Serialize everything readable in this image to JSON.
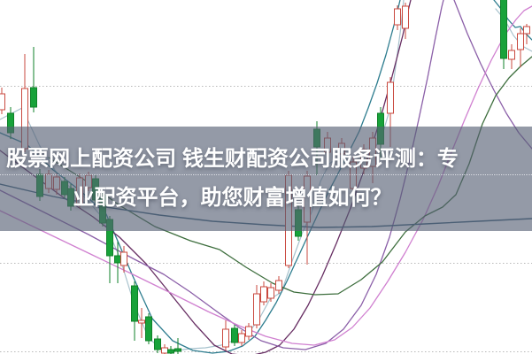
{
  "banner": {
    "line1": "股票网上配资公司 钱生财配资公司服务评测：专",
    "line2": "业配资平台，助您财富增值如何？",
    "full_title": "股票网上配资公司 钱生财配资公司服务评测：专业配资平台，助您财富增值如何？",
    "text_color": "#ffffff",
    "background": "rgba(85,95,115,0.63)"
  },
  "chart_data": {
    "type": "candlestick",
    "title": "",
    "xlabel": "",
    "ylabel": "",
    "axes_labels_visible": false,
    "units": "pixel coordinates of 601x400 canvas (no axis tick labels are visible in source)",
    "grid": {
      "style": "dotted",
      "color": "#b9b9b9",
      "y_positions": [
        97.5,
        197.5,
        297.5,
        397.5
      ]
    },
    "colors": {
      "up_candle_stroke": "#c9493f",
      "up_candle_fill": "#ffffff",
      "down_candle_fill": "#18a23a",
      "down_candle_stroke": "#0f8128",
      "ma5_white": "#a7c2cd",
      "ma10_teal": "#2e7d8f",
      "ma20_purple": "#662d62",
      "ma60_violet": "#8b5fa8",
      "ma120_pink": "#d080d0",
      "ma_green": "#3d6e3d",
      "ma_slate": "#3a5f78"
    },
    "candles": [
      [
        2,
        106,
        124,
        99,
        129,
        "up"
      ],
      [
        12,
        128,
        150,
        121,
        157,
        "down"
      ],
      [
        28,
        100,
        168,
        61,
        172,
        "up"
      ],
      [
        38,
        99,
        121,
        53,
        127,
        "down"
      ],
      [
        45,
        197,
        222,
        191,
        227,
        "down"
      ],
      [
        55,
        197,
        213,
        192,
        218,
        "up"
      ],
      [
        64,
        200,
        214,
        196,
        220,
        "up"
      ],
      [
        73,
        205,
        220,
        200,
        224,
        "down"
      ],
      [
        80,
        213,
        233,
        208,
        238,
        "down"
      ],
      [
        90,
        201,
        230,
        196,
        235,
        "up"
      ],
      [
        100,
        198,
        212,
        194,
        216,
        "up"
      ],
      [
        108,
        202,
        226,
        198,
        230,
        "down"
      ],
      [
        116,
        222,
        252,
        218,
        256,
        "down"
      ],
      [
        124,
        248,
        289,
        244,
        320,
        "down"
      ],
      [
        133,
        289,
        297,
        273,
        320,
        "down"
      ],
      [
        140,
        285,
        300,
        278,
        308,
        "up"
      ],
      [
        152,
        323,
        363,
        318,
        385,
        "down"
      ],
      [
        160,
        362,
        365,
        348,
        382,
        "up"
      ],
      [
        168,
        358,
        385,
        354,
        389,
        "down"
      ],
      [
        178,
        383,
        395,
        379,
        399,
        "down"
      ],
      [
        186,
        393,
        399,
        389,
        400,
        "up"
      ],
      [
        193,
        395,
        399,
        391,
        400,
        "down"
      ],
      [
        201,
        394,
        397,
        382,
        400,
        "down"
      ],
      [
        255,
        372,
        392,
        362,
        396,
        "up"
      ],
      [
        265,
        371,
        387,
        367,
        391,
        "down"
      ],
      [
        273,
        377,
        387,
        373,
        391,
        "up"
      ],
      [
        281,
        369,
        380,
        365,
        384,
        "up"
      ],
      [
        290,
        332,
        367,
        322,
        371,
        "up"
      ],
      [
        298,
        324,
        341,
        318,
        345,
        "up"
      ],
      [
        306,
        325,
        337,
        320,
        341,
        "up"
      ],
      [
        315,
        317,
        328,
        312,
        332,
        "up"
      ],
      [
        326,
        198,
        300,
        193,
        303,
        "up"
      ],
      [
        337,
        237,
        267,
        231,
        272,
        "down"
      ],
      [
        347,
        199,
        251,
        193,
        299,
        "up"
      ],
      [
        358,
        146,
        166,
        137,
        198,
        "down"
      ],
      [
        370,
        156,
        172,
        149,
        184,
        "up"
      ],
      [
        386,
        162,
        174,
        156,
        181,
        "up"
      ],
      [
        399,
        183,
        213,
        177,
        219,
        "up"
      ],
      [
        411,
        169,
        190,
        163,
        197,
        "up"
      ],
      [
        421,
        156,
        188,
        149,
        207,
        "up"
      ],
      [
        430,
        128,
        163,
        121,
        180,
        "down"
      ],
      [
        441,
        93,
        128,
        87,
        166,
        "up"
      ],
      [
        449,
        10,
        28,
        6,
        34,
        "up"
      ],
      [
        458,
        7,
        32,
        3,
        44,
        "up"
      ],
      [
        569,
        -6,
        66,
        -6,
        78,
        "down"
      ],
      [
        578,
        57,
        67,
        50,
        78,
        "up"
      ],
      [
        588,
        38,
        56,
        32,
        76,
        "up"
      ],
      [
        595,
        30,
        38,
        27,
        50,
        "up"
      ]
    ],
    "candle_body_width": 7,
    "ma_lines": [
      {
        "name": "ma5-white",
        "color": "#a7c2cd",
        "width": 1.2,
        "points": [
          [
            0,
            135
          ],
          [
            25,
            122
          ],
          [
            45,
            165
          ],
          [
            70,
            205
          ],
          [
            95,
            222
          ],
          [
            115,
            245
          ],
          [
            135,
            290
          ],
          [
            152,
            345
          ],
          [
            168,
            382
          ],
          [
            185,
            397
          ],
          [
            200,
            396
          ],
          [
            215,
            394
          ],
          [
            232,
            393
          ],
          [
            250,
            390
          ],
          [
            266,
            384
          ],
          [
            280,
            377
          ],
          [
            293,
            360
          ],
          [
            305,
            338
          ],
          [
            318,
            330
          ],
          [
            330,
            295
          ],
          [
            342,
            262
          ],
          [
            352,
            240
          ],
          [
            362,
            205
          ],
          [
            372,
            185
          ],
          [
            382,
            178
          ],
          [
            392,
            183
          ],
          [
            402,
            190
          ],
          [
            412,
            180
          ],
          [
            422,
            170
          ],
          [
            432,
            152
          ],
          [
            440,
            125
          ],
          [
            447,
            75
          ],
          [
            453,
            30
          ],
          [
            456,
            0
          ]
        ]
      },
      {
        "name": "ma5-white-right",
        "color": "#a7c2cd",
        "width": 1.2,
        "points": [
          [
            560,
            10
          ],
          [
            570,
            22
          ],
          [
            580,
            40
          ],
          [
            590,
            52
          ],
          [
            601,
            58
          ]
        ]
      },
      {
        "name": "ma10-teal",
        "color": "#2e7d8f",
        "width": 1.3,
        "points": [
          [
            0,
            150
          ],
          [
            30,
            163
          ],
          [
            60,
            192
          ],
          [
            90,
            215
          ],
          [
            120,
            242
          ],
          [
            150,
            312
          ],
          [
            172,
            360
          ],
          [
            195,
            385
          ],
          [
            218,
            396
          ],
          [
            240,
            399
          ],
          [
            258,
            397
          ],
          [
            274,
            391
          ],
          [
            288,
            380
          ],
          [
            300,
            362
          ],
          [
            312,
            342
          ],
          [
            324,
            318
          ],
          [
            336,
            292
          ],
          [
            348,
            266
          ],
          [
            360,
            240
          ],
          [
            372,
            215
          ],
          [
            384,
            192
          ],
          [
            395,
            170
          ],
          [
            406,
            148
          ],
          [
            416,
            122
          ],
          [
            426,
            94
          ],
          [
            436,
            62
          ],
          [
            446,
            25
          ],
          [
            452,
            0
          ]
        ]
      },
      {
        "name": "ma10-teal-right",
        "color": "#2e7d8f",
        "width": 1.3,
        "points": [
          [
            558,
            0
          ],
          [
            566,
            10
          ],
          [
            574,
            22
          ],
          [
            582,
            31
          ],
          [
            588,
            30
          ],
          [
            594,
            38
          ],
          [
            601,
            45
          ]
        ]
      },
      {
        "name": "ma20-purple",
        "color": "#662d62",
        "width": 1.3,
        "points": [
          [
            0,
            170
          ],
          [
            35,
            196
          ],
          [
            70,
            222
          ],
          [
            105,
            245
          ],
          [
            135,
            268
          ],
          [
            165,
            298
          ],
          [
            195,
            335
          ],
          [
            220,
            366
          ],
          [
            242,
            390
          ],
          [
            262,
            400
          ],
          [
            282,
            402
          ],
          [
            300,
            398
          ],
          [
            316,
            390
          ],
          [
            332,
            372
          ],
          [
            348,
            345
          ],
          [
            364,
            312
          ],
          [
            380,
            275
          ],
          [
            396,
            235
          ],
          [
            412,
            190
          ],
          [
            428,
            140
          ],
          [
            442,
            90
          ],
          [
            455,
            40
          ],
          [
            462,
            8
          ],
          [
            464,
            0
          ]
        ]
      },
      {
        "name": "ma60-violet",
        "color": "#8b5fa8",
        "width": 1.3,
        "points": [
          [
            0,
            215
          ],
          [
            50,
            240
          ],
          [
            100,
            265
          ],
          [
            150,
            292
          ],
          [
            185,
            310
          ],
          [
            215,
            330
          ],
          [
            245,
            352
          ],
          [
            270,
            370
          ],
          [
            295,
            385
          ],
          [
            320,
            393
          ],
          [
            345,
            395
          ],
          [
            368,
            388
          ],
          [
            388,
            372
          ],
          [
            408,
            345
          ],
          [
            425,
            310
          ],
          [
            440,
            268
          ],
          [
            452,
            225
          ],
          [
            463,
            180
          ],
          [
            473,
            135
          ],
          [
            483,
            88
          ],
          [
            492,
            42
          ],
          [
            499,
            8
          ],
          [
            501,
            0
          ]
        ]
      },
      {
        "name": "ma60-violet-descending",
        "color": "#8b5fa8",
        "width": 1.3,
        "points": [
          [
            513,
            0
          ],
          [
            528,
            38
          ],
          [
            543,
            72
          ],
          [
            558,
            102
          ],
          [
            572,
            128
          ],
          [
            586,
            150
          ],
          [
            601,
            168
          ]
        ]
      },
      {
        "name": "ma120-pink",
        "color": "#d080d0",
        "width": 1.3,
        "points": [
          [
            0,
            238
          ],
          [
            50,
            262
          ],
          [
            100,
            286
          ],
          [
            150,
            310
          ],
          [
            195,
            332
          ],
          [
            235,
            352
          ],
          [
            270,
            368
          ],
          [
            300,
            380
          ],
          [
            330,
            388
          ],
          [
            355,
            390
          ],
          [
            378,
            384
          ],
          [
            398,
            370
          ],
          [
            418,
            348
          ],
          [
            438,
            318
          ],
          [
            458,
            285
          ],
          [
            478,
            248
          ],
          [
            495,
            210
          ],
          [
            510,
            172
          ],
          [
            525,
            135
          ],
          [
            540,
            100
          ],
          [
            555,
            68
          ],
          [
            570,
            40
          ],
          [
            583,
            22
          ],
          [
            592,
            12
          ],
          [
            601,
            7
          ]
        ]
      },
      {
        "name": "ma-green",
        "color": "#3d6e3d",
        "width": 1.3,
        "points": [
          [
            55,
            178
          ],
          [
            95,
            203
          ],
          [
            135,
            232
          ],
          [
            175,
            256
          ],
          [
            215,
            272
          ],
          [
            248,
            282
          ],
          [
            278,
            302
          ],
          [
            308,
            320
          ],
          [
            332,
            330
          ],
          [
            356,
            333
          ],
          [
            382,
            332
          ],
          [
            408,
            316
          ],
          [
            432,
            296
          ],
          [
            458,
            262
          ],
          [
            480,
            244
          ],
          [
            500,
            234
          ],
          [
            515,
            220
          ],
          [
            530,
            185
          ],
          [
            545,
            140
          ],
          [
            560,
            108
          ],
          [
            575,
            88
          ],
          [
            588,
            75
          ],
          [
            601,
            64
          ]
        ]
      },
      {
        "name": "ma-slate",
        "color": "#3a5f78",
        "width": 1.4,
        "points": [
          [
            0,
            208
          ],
          [
            60,
            222
          ],
          [
            120,
            234
          ],
          [
            180,
            243
          ],
          [
            240,
            250
          ],
          [
            300,
            254
          ],
          [
            360,
            257
          ],
          [
            420,
            256
          ],
          [
            480,
            253
          ],
          [
            540,
            250
          ],
          [
            601,
            247
          ]
        ]
      }
    ]
  }
}
